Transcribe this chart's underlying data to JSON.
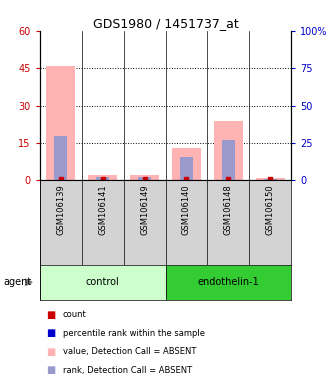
{
  "title": "GDS1980 / 1451737_at",
  "samples": [
    "GSM106139",
    "GSM106141",
    "GSM106149",
    "GSM106140",
    "GSM106148",
    "GSM106150"
  ],
  "groups": [
    "control",
    "control",
    "control",
    "endothelin-1",
    "endothelin-1",
    "endothelin-1"
  ],
  "group_colors": {
    "control": "#ccffcc",
    "endothelin-1": "#33cc33"
  },
  "pink_values": [
    46.0,
    2.0,
    2.0,
    13.0,
    24.0,
    1.0
  ],
  "blue_values": [
    30.0,
    2.0,
    2.0,
    16.0,
    27.0,
    1.0
  ],
  "red_dots": [
    0.3,
    0.3,
    0.3,
    0.3,
    0.3,
    0.3
  ],
  "ylim_left": [
    0,
    60
  ],
  "ylim_right": [
    0,
    100
  ],
  "yticks_left": [
    0,
    15,
    30,
    45,
    60
  ],
  "yticks_right": [
    0,
    25,
    50,
    75,
    100
  ],
  "ytick_labels_left": [
    "0",
    "15",
    "30",
    "45",
    "60"
  ],
  "ytick_labels_right": [
    "0",
    "25",
    "50",
    "75",
    "100%"
  ],
  "left_axis_color": "#cc0000",
  "right_axis_color": "#0000cc",
  "bar_width": 0.4,
  "agent_label": "agent",
  "legend_items": [
    {
      "color": "#cc0000",
      "label": "count",
      "marker": "s"
    },
    {
      "color": "#0000cc",
      "label": "percentile rank within the sample",
      "marker": "s"
    },
    {
      "color": "#ffb3b3",
      "label": "value, Detection Call = ABSENT",
      "marker": "s"
    },
    {
      "color": "#b3b3ff",
      "label": "rank, Detection Call = ABSENT",
      "marker": "s"
    }
  ]
}
